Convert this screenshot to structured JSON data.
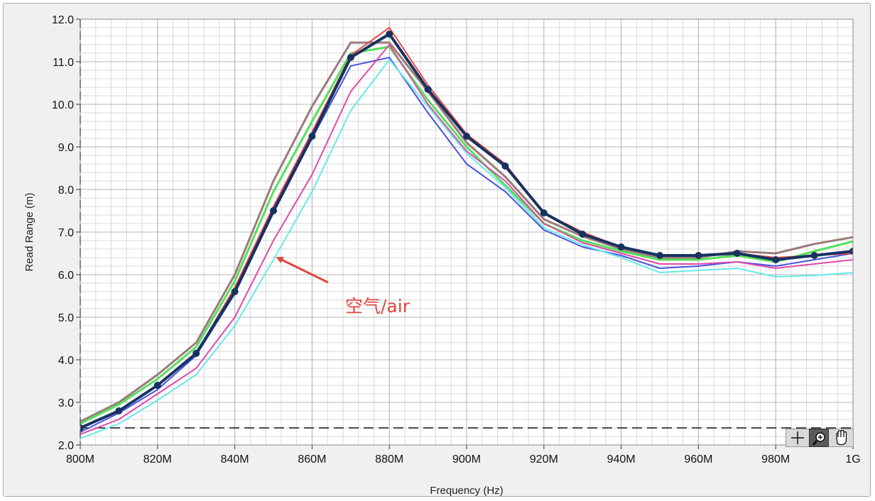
{
  "chart_data": {
    "type": "line",
    "xlabel": "Frequency (Hz)",
    "ylabel": "Read Range (m)",
    "x": [
      800,
      810,
      820,
      830,
      840,
      850,
      860,
      870,
      880,
      890,
      900,
      910,
      920,
      930,
      940,
      950,
      960,
      970,
      980,
      990,
      1000
    ],
    "xlim": [
      800,
      1000
    ],
    "ylim": [
      2.0,
      12.0
    ],
    "xticks": [
      800,
      820,
      840,
      860,
      880,
      900,
      920,
      940,
      960,
      980,
      1000
    ],
    "xtick_labels": [
      "800M",
      "820M",
      "840M",
      "860M",
      "880M",
      "900M",
      "920M",
      "940M",
      "960M",
      "980M",
      "1G"
    ],
    "yticks": [
      2,
      3,
      4,
      5,
      6,
      7,
      8,
      9,
      10,
      11,
      12
    ],
    "ytick_labels": [
      "2.0",
      "3.0",
      "4.0",
      "5.0",
      "6.0",
      "7.0",
      "8.0",
      "9.0",
      "10.0",
      "11.0",
      "12.0"
    ],
    "grid": true,
    "reference_line": {
      "y": 2.4,
      "style": "dashed"
    },
    "annotation": {
      "text": "空气/air",
      "arrow_to": [
        851,
        6.4
      ]
    },
    "series": [
      {
        "color": "#9b7b7b",
        "width": 3,
        "values": [
          2.55,
          3.0,
          3.65,
          4.4,
          6.0,
          8.2,
          9.95,
          11.45,
          11.45,
          10.3,
          9.1,
          8.3,
          7.3,
          6.9,
          6.6,
          6.4,
          6.4,
          6.55,
          6.5,
          6.72,
          6.88
        ]
      },
      {
        "color": "#55e05a",
        "width": 3,
        "values": [
          2.5,
          2.95,
          3.55,
          4.3,
          5.85,
          7.95,
          9.6,
          11.2,
          11.35,
          10.1,
          9.0,
          8.1,
          7.2,
          6.8,
          6.55,
          6.35,
          6.35,
          6.45,
          6.3,
          6.55,
          6.78
        ]
      },
      {
        "color": "#4a52e0",
        "width": 2,
        "values": [
          2.3,
          2.75,
          3.3,
          4.1,
          5.55,
          7.45,
          9.2,
          10.9,
          11.1,
          9.8,
          8.6,
          7.95,
          7.05,
          6.65,
          6.45,
          6.15,
          6.2,
          6.3,
          6.2,
          6.35,
          6.5
        ]
      },
      {
        "color": "#e84848",
        "width": 2,
        "values": [
          2.4,
          2.8,
          3.4,
          4.15,
          5.7,
          7.6,
          9.35,
          11.15,
          11.8,
          10.45,
          9.3,
          8.6,
          7.45,
          7.0,
          6.65,
          6.45,
          6.45,
          6.5,
          6.4,
          6.45,
          6.5
        ]
      },
      {
        "color": "#e04aa8",
        "width": 2,
        "values": [
          2.25,
          2.6,
          3.2,
          3.8,
          5.0,
          6.8,
          8.35,
          10.3,
          11.4,
          10.0,
          8.9,
          8.2,
          7.2,
          6.75,
          6.5,
          6.25,
          6.25,
          6.3,
          6.15,
          6.25,
          6.35
        ]
      },
      {
        "color": "#66eaea",
        "width": 2,
        "values": [
          2.15,
          2.5,
          3.05,
          3.65,
          4.8,
          6.35,
          7.95,
          9.85,
          11.05,
          9.95,
          8.85,
          8.05,
          7.1,
          6.7,
          6.4,
          6.05,
          6.1,
          6.15,
          5.95,
          5.98,
          6.05
        ]
      },
      {
        "color": "#17325f",
        "width": 4,
        "markers": true,
        "values": [
          2.4,
          2.8,
          3.4,
          4.15,
          5.6,
          7.5,
          9.25,
          11.1,
          11.65,
          10.35,
          9.25,
          8.55,
          7.45,
          6.95,
          6.65,
          6.45,
          6.45,
          6.5,
          6.35,
          6.45,
          6.55
        ]
      }
    ]
  }
}
